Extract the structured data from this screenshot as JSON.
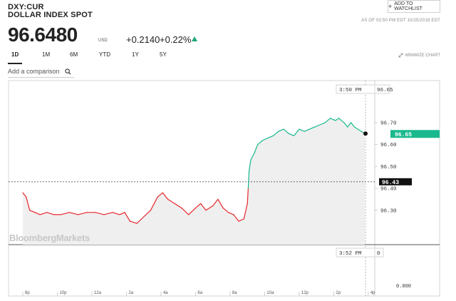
{
  "header": {
    "ticker": "DXY:CUR",
    "name": "DOLLAR INDEX SPOT",
    "watchlist_label": "ADD TO WATCHLIST",
    "as_of": "AS OF 03:50 PM EDT 10/25/2018 EDT",
    "price": "96.6480",
    "currency": "USD",
    "change": "+0.2140",
    "change_pct": "+0.22%",
    "up_color": "#1ea672"
  },
  "tabs": [
    {
      "label": "1D",
      "active": true
    },
    {
      "label": "1M"
    },
    {
      "label": "6M"
    },
    {
      "label": "YTD"
    },
    {
      "label": "1Y"
    },
    {
      "label": "5Y"
    }
  ],
  "minimize_label": "MINIMIZE CHART",
  "comparison": {
    "placeholder": "Add a comparison",
    "icon": "search-icon"
  },
  "watermark": "BloombergMarkets",
  "chart_data": {
    "type": "line",
    "series_colors": {
      "below_open": "#e8262c",
      "above_open": "#19b88d"
    },
    "reference_line": 96.43,
    "reference_label": "96.43",
    "last_value_label": "96.65",
    "crosshair_time": "3:50 PM",
    "crosshair_value": "96.65",
    "volume_time": "3:52 PM",
    "volume_value": "0",
    "volume_axis_label": "0.000",
    "y_ticks": [
      "96.70",
      "96.60",
      "96.50",
      "96.40",
      "96.30"
    ],
    "y_tick_values": [
      96.7,
      96.6,
      96.5,
      96.4,
      96.3
    ],
    "ylim": [
      96.195,
      96.83
    ],
    "x_ticks": [
      "8p",
      "10p",
      "12a",
      "2a",
      "4a",
      "6a",
      "8a",
      "10a",
      "12p",
      "2p",
      "4p"
    ],
    "x_tick_hours": [
      -4,
      -2,
      0,
      2,
      4,
      6,
      8,
      10,
      12,
      14,
      16
    ],
    "xlim_hours": [
      -4.3,
      16.4
    ],
    "x_hours": [
      -4.0,
      -3.8,
      -3.6,
      -3.3,
      -3.0,
      -2.6,
      -2.2,
      -1.8,
      -1.3,
      -0.8,
      -0.3,
      0.2,
      0.7,
      1.2,
      1.6,
      1.9,
      2.2,
      2.6,
      3.0,
      3.4,
      3.8,
      4.1,
      4.4,
      4.8,
      5.2,
      5.6,
      6.0,
      6.3,
      6.6,
      7.0,
      7.3,
      7.6,
      7.9,
      8.2,
      8.5,
      8.8,
      9.0,
      9.05,
      9.1,
      9.2,
      9.4,
      9.6,
      9.9,
      10.2,
      10.5,
      10.8,
      11.1,
      11.4,
      11.7,
      12.0,
      12.3,
      12.6,
      12.9,
      13.2,
      13.5,
      13.8,
      14.1,
      14.3,
      14.6,
      14.8,
      15.0,
      15.2,
      15.4,
      15.6,
      15.8
    ],
    "y_values": [
      96.38,
      96.36,
      96.3,
      96.29,
      96.28,
      96.29,
      96.28,
      96.28,
      96.29,
      96.28,
      96.29,
      96.29,
      96.28,
      96.29,
      96.28,
      96.29,
      96.25,
      96.24,
      96.27,
      96.3,
      96.36,
      96.38,
      96.35,
      96.33,
      96.31,
      96.28,
      96.31,
      96.33,
      96.3,
      96.32,
      96.35,
      96.31,
      96.29,
      96.28,
      96.25,
      96.26,
      96.33,
      96.4,
      96.48,
      96.53,
      96.56,
      96.6,
      96.62,
      96.63,
      96.64,
      96.66,
      96.67,
      96.65,
      96.64,
      96.67,
      96.66,
      96.67,
      96.68,
      96.69,
      96.7,
      96.72,
      96.71,
      96.72,
      96.7,
      96.68,
      96.7,
      96.68,
      96.67,
      96.66,
      96.65
    ]
  }
}
